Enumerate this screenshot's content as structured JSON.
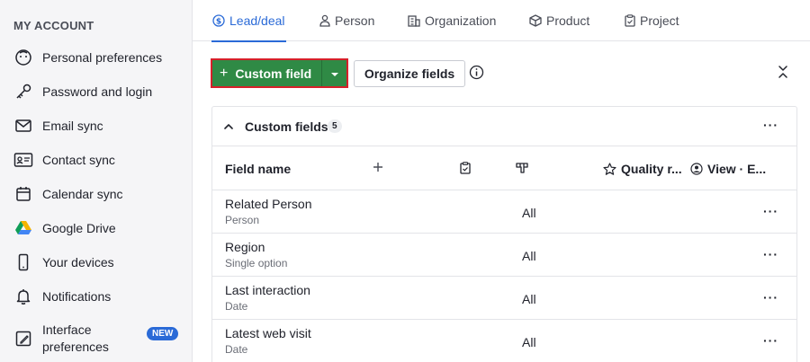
{
  "sidebar": {
    "title": "MY ACCOUNT",
    "items": [
      {
        "label": "Personal preferences",
        "icon": "smiley-icon"
      },
      {
        "label": "Password and login",
        "icon": "key-icon"
      },
      {
        "label": "Email sync",
        "icon": "envelope-icon"
      },
      {
        "label": "Contact sync",
        "icon": "contact-card-icon"
      },
      {
        "label": "Calendar sync",
        "icon": "calendar-icon"
      },
      {
        "label": "Google Drive",
        "icon": "google-drive-icon"
      },
      {
        "label": "Your devices",
        "icon": "phone-icon"
      },
      {
        "label": "Notifications",
        "icon": "bell-icon"
      },
      {
        "label": "Interface preferences",
        "icon": "interface-icon",
        "badge": "NEW"
      }
    ]
  },
  "tabs": [
    {
      "label": "Lead/deal",
      "icon": "dollar-circle-icon",
      "active": true
    },
    {
      "label": "Person",
      "icon": "person-icon"
    },
    {
      "label": "Organization",
      "icon": "building-icon"
    },
    {
      "label": "Product",
      "icon": "box-icon"
    },
    {
      "label": "Project",
      "icon": "clipboard-icon"
    }
  ],
  "toolbar": {
    "custom_field_label": "Custom field",
    "organize_label": "Organize fields"
  },
  "panel": {
    "title": "Custom fields",
    "count": "5",
    "columns": {
      "field_name": "Field name",
      "quality": "Quality r...",
      "view": "View · E..."
    },
    "rows": [
      {
        "name": "Related Person",
        "type": "Person",
        "value": "All"
      },
      {
        "name": "Region",
        "type": "Single option",
        "value": "All"
      },
      {
        "name": "Last interaction",
        "type": "Date",
        "value": "All"
      },
      {
        "name": "Latest web visit",
        "type": "Date",
        "value": "All"
      }
    ]
  },
  "colors": {
    "accent": "#2a6ad7",
    "primary_button": "#2f8a45",
    "highlight_border": "#d6202a"
  }
}
